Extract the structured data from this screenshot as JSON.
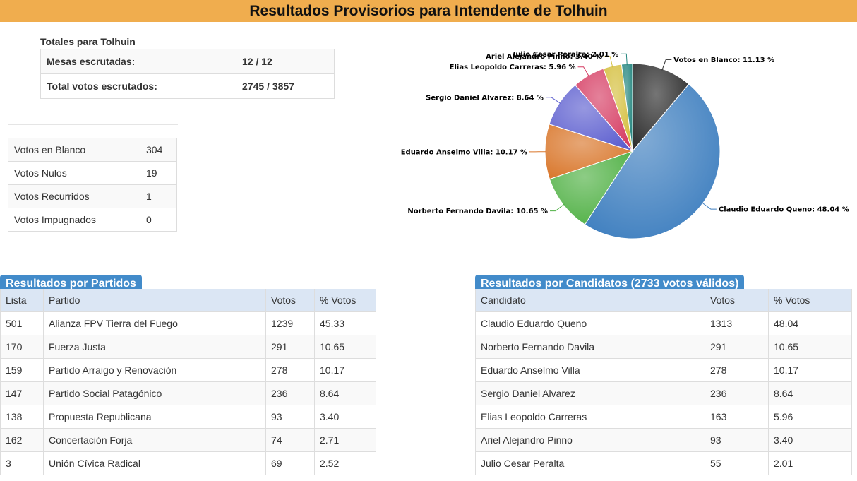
{
  "page_title": "Resultados Provisorios para Intendente de Tolhuin",
  "totals": {
    "caption": "Totales para Tolhuin",
    "rows": [
      {
        "label": "Mesas escrutadas:",
        "value": "12 / 12"
      },
      {
        "label": "Total votos escrutados:",
        "value": "2745 / 3857"
      }
    ]
  },
  "special_votes": [
    {
      "label": "Votos en Blanco",
      "value": "304"
    },
    {
      "label": "Votos Nulos",
      "value": "19"
    },
    {
      "label": "Votos Recurridos",
      "value": "1"
    },
    {
      "label": "Votos Impugnados",
      "value": "0"
    }
  ],
  "partidos": {
    "heading": "Resultados por Partidos",
    "columns": [
      "Lista",
      "Partido",
      "Votos",
      "% Votos"
    ],
    "rows": [
      [
        "501",
        "Alianza FPV Tierra del Fuego",
        "1239",
        "45.33"
      ],
      [
        "170",
        "Fuerza Justa",
        "291",
        "10.65"
      ],
      [
        "159",
        "Partido Arraigo y Renovación",
        "278",
        "10.17"
      ],
      [
        "147",
        "Partido Social Patagónico",
        "236",
        "8.64"
      ],
      [
        "138",
        "Propuesta Republicana",
        "93",
        "3.40"
      ],
      [
        "162",
        "Concertación Forja",
        "74",
        "2.71"
      ],
      [
        "3",
        "Unión Cívica Radical",
        "69",
        "2.52"
      ]
    ]
  },
  "candidatos": {
    "heading": "Resultados por Candidatos (2733 votos válidos)",
    "columns": [
      "Candidato",
      "Votos",
      "% Votos"
    ],
    "rows": [
      [
        "Claudio Eduardo Queno",
        "1313",
        "48.04"
      ],
      [
        "Norberto Fernando Davila",
        "291",
        "10.65"
      ],
      [
        "Eduardo Anselmo Villa",
        "278",
        "10.17"
      ],
      [
        "Sergio Daniel Alvarez",
        "236",
        "8.64"
      ],
      [
        "Elias Leopoldo Carreras",
        "163",
        "5.96"
      ],
      [
        "Ariel Alejandro Pinno",
        "93",
        "3.40"
      ],
      [
        "Julio Cesar Peralta",
        "55",
        "2.01"
      ]
    ]
  },
  "chart_data": {
    "type": "pie",
    "slices": [
      {
        "name": "Votos en Blanco",
        "value": 11.13,
        "label": "Votos en Blanco: 11.13 %",
        "color": "#2b2b2b"
      },
      {
        "name": "Claudio Eduardo Queno",
        "value": 48.04,
        "label": "Claudio Eduardo Queno: 48.04 %",
        "color": "#3d7ebf"
      },
      {
        "name": "Norberto Fernando Davila",
        "value": 10.65,
        "label": "Norberto Fernando Davila: 10.65 %",
        "color": "#4fb044"
      },
      {
        "name": "Eduardo Anselmo Villa",
        "value": 10.17,
        "label": "Eduardo Anselmo Villa: 10.17 %",
        "color": "#d9762a"
      },
      {
        "name": "Sergio Daniel Alvarez",
        "value": 8.64,
        "label": "Sergio Daniel Alvarez: 8.64 %",
        "color": "#5d5fcf"
      },
      {
        "name": "Elias Leopoldo Carreras",
        "value": 5.96,
        "label": "Elias Leopoldo Carreras: 5.96 %",
        "color": "#d63d63"
      },
      {
        "name": "Ariel Alejandro Pinno",
        "value": 3.4,
        "label": "Ariel Alejandro Pinno: 3.40 %",
        "color": "#d4be3c"
      },
      {
        "name": "Julio Cesar Peralta",
        "value": 2.01,
        "label": "Julio Cesar Peralta: 2.01 %",
        "color": "#23857e"
      }
    ]
  }
}
